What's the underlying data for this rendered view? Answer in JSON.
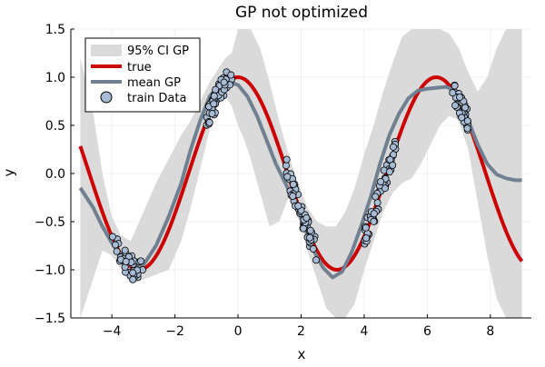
{
  "chart_data": {
    "type": "line",
    "title": "GP not optimized",
    "xlabel": "x",
    "ylabel": "y",
    "xlim": [
      -5.3,
      9.3
    ],
    "ylim": [
      -1.5,
      1.5
    ],
    "xticks": [
      -4,
      -2,
      0,
      2,
      4,
      6,
      8
    ],
    "yticks": [
      -1.5,
      -1.0,
      -0.5,
      0.0,
      0.5,
      1.0,
      1.5
    ],
    "xtick_labels": [
      "−4",
      "−2",
      "0",
      "2",
      "4",
      "6",
      "8"
    ],
    "ytick_labels": [
      "−1.5",
      "−1.0",
      "−0.5",
      "0.0",
      "0.5",
      "1.0",
      "1.5"
    ],
    "grid": true,
    "legend_position": "top-left",
    "colors": {
      "ci_band": "#dadada",
      "true": "#cc0000",
      "mean_gp": "#708090",
      "train_fill": "#a7bbd4",
      "train_edge": "#000000"
    },
    "series": [
      {
        "name": "95% CI GP",
        "kind": "band",
        "x": [
          -5.0,
          -4.6,
          -4.3,
          -4.0,
          -3.7,
          -3.4,
          -3.0,
          -2.6,
          -2.2,
          -1.8,
          -1.5,
          -1.2,
          -0.9,
          -0.6,
          -0.4,
          -0.2,
          0.0,
          0.2,
          0.4,
          0.7,
          1.0,
          1.3,
          1.6,
          1.9,
          2.2,
          2.5,
          2.8,
          3.1,
          3.4,
          3.7,
          4.0,
          4.3,
          4.6,
          4.9,
          5.2,
          5.5,
          5.8,
          6.1,
          6.4,
          6.7,
          7.0,
          7.3,
          7.6,
          7.9,
          8.2,
          8.5,
          8.8,
          9.0
        ],
        "upper": [
          1.2,
          0.65,
          0.0,
          -0.45,
          -0.65,
          -0.7,
          -0.4,
          -0.1,
          0.15,
          0.4,
          0.55,
          0.75,
          0.95,
          1.1,
          1.2,
          1.25,
          1.5,
          1.5,
          1.5,
          1.3,
          0.95,
          0.55,
          0.2,
          -0.1,
          -0.35,
          -0.5,
          -0.55,
          -0.55,
          -0.4,
          -0.15,
          0.2,
          0.5,
          0.85,
          1.15,
          1.42,
          1.5,
          1.5,
          1.5,
          1.5,
          1.45,
          1.3,
          1.05,
          0.85,
          1.0,
          1.3,
          1.5,
          1.5,
          1.5
        ],
        "lower": [
          -1.5,
          -1.1,
          -0.8,
          -0.85,
          -1.0,
          -1.15,
          -1.1,
          -1.05,
          -1.0,
          -0.7,
          -0.35,
          0.05,
          0.45,
          0.75,
          0.8,
          0.7,
          0.5,
          0.35,
          0.15,
          -0.2,
          -0.55,
          -0.5,
          -0.25,
          -0.45,
          -0.8,
          -1.1,
          -1.4,
          -1.5,
          -1.5,
          -1.35,
          -1.0,
          -0.7,
          -0.4,
          -0.2,
          -0.1,
          -0.05,
          0.1,
          0.3,
          0.5,
          0.6,
          0.55,
          0.25,
          -0.3,
          -0.85,
          -1.3,
          -1.5,
          -1.5,
          -1.5
        ]
      },
      {
        "name": "true",
        "kind": "line",
        "expression": "sin(x + pi/2)"
      },
      {
        "name": "mean GP",
        "kind": "line",
        "x": [
          -5.0,
          -4.6,
          -4.3,
          -4.0,
          -3.7,
          -3.4,
          -3.0,
          -2.6,
          -2.2,
          -1.8,
          -1.5,
          -1.2,
          -0.9,
          -0.6,
          -0.3,
          0.0,
          0.3,
          0.6,
          0.9,
          1.2,
          1.5,
          1.8,
          2.1,
          2.4,
          2.7,
          3.0,
          3.3,
          3.6,
          3.9,
          4.2,
          4.5,
          4.8,
          5.1,
          5.4,
          5.7,
          6.0,
          6.3,
          6.6,
          6.8,
          7.0,
          7.3,
          7.6,
          7.9,
          8.2,
          8.5,
          8.8,
          9.0
        ],
        "y": [
          -0.15,
          -0.35,
          -0.55,
          -0.72,
          -0.85,
          -0.95,
          -0.95,
          -0.75,
          -0.45,
          -0.1,
          0.25,
          0.55,
          0.8,
          0.92,
          0.95,
          0.92,
          0.8,
          0.6,
          0.35,
          0.1,
          -0.1,
          -0.3,
          -0.55,
          -0.8,
          -0.98,
          -1.08,
          -1.02,
          -0.82,
          -0.55,
          -0.25,
          0.1,
          0.4,
          0.62,
          0.78,
          0.86,
          0.88,
          0.89,
          0.9,
          0.87,
          0.78,
          0.55,
          0.3,
          0.1,
          -0.01,
          -0.05,
          -0.07,
          -0.07
        ]
      },
      {
        "name": "train Data",
        "kind": "scatter",
        "clusters": [
          {
            "x_from": -4.0,
            "x_to": -3.0,
            "count": 40,
            "noise": 0.12
          },
          {
            "x_from": -1.0,
            "x_to": -0.2,
            "count": 55,
            "noise": 0.12
          },
          {
            "x_from": 1.5,
            "x_to": 2.5,
            "count": 55,
            "noise": 0.12
          },
          {
            "x_from": 4.0,
            "x_to": 5.0,
            "count": 55,
            "noise": 0.12
          },
          {
            "x_from": 6.8,
            "x_to": 7.3,
            "count": 40,
            "noise": 0.12
          }
        ]
      }
    ]
  }
}
